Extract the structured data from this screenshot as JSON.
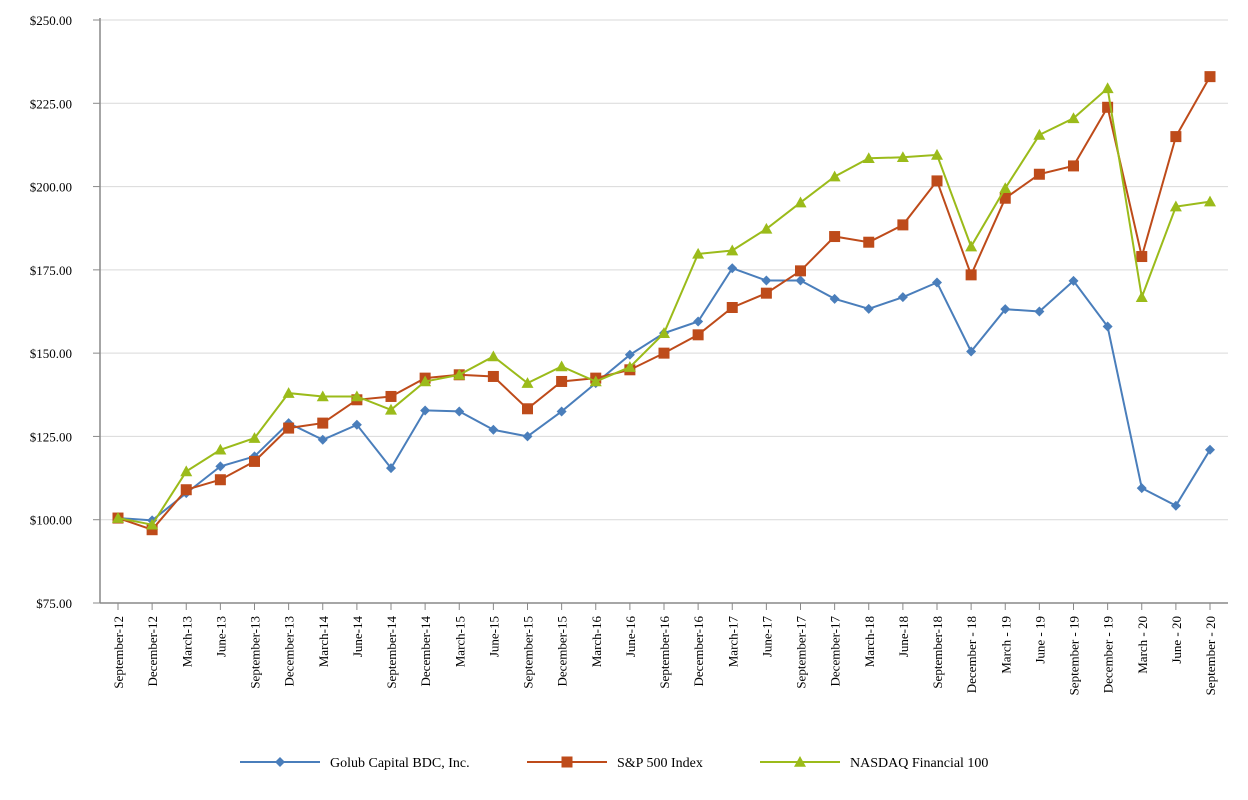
{
  "chart_data": {
    "type": "line",
    "title": "",
    "xlabel": "",
    "ylabel": "",
    "ylim": [
      75,
      250
    ],
    "yticks": [
      75,
      100,
      125,
      150,
      175,
      200,
      225,
      250
    ],
    "ytick_labels": [
      "$75.00",
      "$100.00",
      "$125.00",
      "$150.00",
      "$175.00",
      "$200.00",
      "$225.00",
      "$250.00"
    ],
    "grid": "horizontal",
    "legend_position": "bottom",
    "categories": [
      "September-12",
      "December-12",
      "March-13",
      "June-13",
      "September-13",
      "December-13",
      "March-14",
      "June-14",
      "September-14",
      "December-14",
      "March-15",
      "June-15",
      "September-15",
      "December-15",
      "March-16",
      "June-16",
      "September-16",
      "December-16",
      "March-17",
      "June-17",
      "September-17",
      "December-17",
      "March-18",
      "June-18",
      "September-18",
      "December - 18",
      "March - 19",
      "June - 19",
      "September - 19",
      "December - 19",
      "March - 20",
      "June - 20",
      "September - 20"
    ],
    "series": [
      {
        "name": "Golub Capital BDC, Inc.",
        "color": "#4a7ebb",
        "marker": "diamond",
        "values": [
          100.5,
          99.8,
          108,
          116,
          119,
          129,
          124,
          128.5,
          115.5,
          132.8,
          132.5,
          127,
          125,
          132.5,
          141,
          149.5,
          156,
          159.5,
          175.5,
          171.8,
          171.8,
          166.3,
          163.3,
          166.8,
          171.2,
          150.5,
          163.2,
          162.5,
          171.7,
          158,
          109.5,
          104.2,
          121
        ]
      },
      {
        "name": "S&P 500 Index",
        "color": "#be4b1a",
        "marker": "square",
        "values": [
          100.5,
          97,
          109,
          112,
          117.5,
          127.5,
          129,
          136,
          137,
          142.5,
          143.5,
          143,
          133.3,
          141.5,
          142.5,
          145,
          150,
          155.5,
          163.7,
          168,
          174.7,
          185,
          183.3,
          188.5,
          201.7,
          173.5,
          196.5,
          203.7,
          206.2,
          223.8,
          179,
          215,
          233
        ]
      },
      {
        "name": "NASDAQ Financial 100",
        "color": "#9bbb1a",
        "marker": "triangle",
        "values": [
          100.5,
          98.5,
          114.5,
          121,
          124.5,
          138,
          137,
          137,
          133,
          141.5,
          143.5,
          149,
          141,
          146,
          141.5,
          145.8,
          156,
          179.8,
          180.8,
          187.3,
          195.2,
          203,
          208.5,
          208.8,
          209.5,
          182,
          199.5,
          215.5,
          220.5,
          229.5,
          166.8,
          194,
          195.5
        ]
      }
    ]
  }
}
